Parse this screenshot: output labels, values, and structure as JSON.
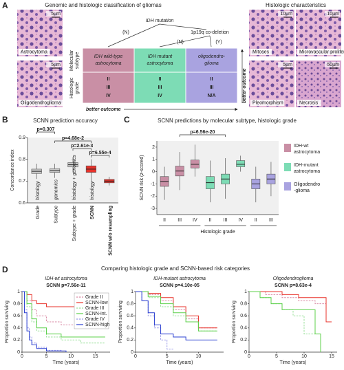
{
  "panel_a": {
    "label": "A",
    "title": "Genomic and histologic classification of gliomas",
    "images_left": [
      {
        "caption": "Astrocytoma",
        "scale": "5µm"
      },
      {
        "caption": "Oligodendroglioma",
        "scale": "5µm"
      }
    ],
    "tree": {
      "root": "IDH mutation",
      "root_no": "(N)",
      "node": "1p19q co-deletion",
      "node_no": "(N)",
      "node_yes": "(Y)"
    },
    "row_labels": [
      [
        "Molecular",
        "subtype"
      ],
      [
        "Histologic",
        "grade"
      ]
    ],
    "subtypes": [
      [
        "IDH wild-type",
        "astrocytoma"
      ],
      [
        "IDH mutant",
        "astrocytoma"
      ],
      [
        "oligodendro-",
        "glioma"
      ]
    ],
    "subtype_colors": [
      "#c98fa5",
      "#7ddcb5",
      "#a9a3e0"
    ],
    "grades": [
      [
        "II",
        "III",
        "IV"
      ],
      [
        "II",
        "III",
        "IV"
      ],
      [
        "II",
        "III",
        "N/A"
      ]
    ],
    "better_outcome_h": "better outcome",
    "better_outcome_v": "better outcome",
    "histo_title": "Histologic characteristics",
    "histo_images": [
      {
        "caption": "Mitoses",
        "scale": "10µm"
      },
      {
        "caption": "Microvascular proliferation",
        "scale": "10µm"
      },
      {
        "caption": "Pleomorphism",
        "scale": "5µm"
      },
      {
        "caption": "Necrosis",
        "scale": "50µm"
      }
    ]
  },
  "panel_d": {
    "label": "D",
    "title": "Comparing histologic grade and SCNN-based risk categories"
  },
  "chart_data": [
    {
      "type": "box",
      "label": "B",
      "title": "SCNN prediction accuracy",
      "ylabel": "Concordance index",
      "categories": [
        "Grade",
        "Subtype",
        "Subtype + grade",
        "SCNN",
        "SCNN w/o resampling"
      ],
      "box_labels": [
        "histology",
        "genomics",
        "histology + genomics",
        "histology"
      ],
      "colors": [
        "#c8c8c8",
        "#c8c8c8",
        "#c8c8c8",
        "#e8322a",
        "#e8322a"
      ],
      "median": [
        0.745,
        0.748,
        0.775,
        0.755,
        0.7
      ],
      "q1": [
        0.735,
        0.74,
        0.765,
        0.74,
        0.692
      ],
      "q3": [
        0.755,
        0.757,
        0.785,
        0.77,
        0.708
      ],
      "whisker_low": [
        0.71,
        0.715,
        0.74,
        0.7,
        0.68
      ],
      "whisker_high": [
        0.78,
        0.78,
        0.81,
        0.8,
        0.72
      ],
      "ylim": [
        0.6,
        0.9
      ],
      "yticks": [
        0.6,
        0.7,
        0.8,
        0.9
      ],
      "annotations": [
        "p=0.307",
        "p=4.68e-2",
        "p=2.61e-3",
        "p=6.55e-4"
      ]
    },
    {
      "type": "box",
      "label": "C",
      "title": "SCNN predictions by molecular subtype, histologic grade",
      "ylabel": "SCNN risk (z-scored)",
      "xlabel": "Histologic grade",
      "categories": [
        "II",
        "III",
        "IV",
        "II",
        "III",
        "IV",
        "II",
        "III"
      ],
      "colors": [
        "#c98fa5",
        "#c98fa5",
        "#c98fa5",
        "#7ddcb5",
        "#7ddcb5",
        "#7ddcb5",
        "#a9a3e0",
        "#a9a3e0"
      ],
      "median": [
        -0.8,
        0.05,
        0.6,
        -0.9,
        -0.6,
        0.6,
        -1.0,
        -0.6
      ],
      "q1": [
        -1.2,
        -0.35,
        0.3,
        -1.4,
        -1.0,
        0.4,
        -1.4,
        -1.0
      ],
      "q3": [
        -0.4,
        0.45,
        0.95,
        -0.4,
        -0.2,
        0.9,
        -0.6,
        -0.2
      ],
      "whisker_low": [
        -2.3,
        -1.5,
        -0.4,
        -2.5,
        -2.2,
        0.0,
        -2.5,
        -2.0
      ],
      "whisker_high": [
        0.4,
        1.6,
        2.2,
        0.9,
        1.1,
        1.3,
        0.4,
        0.8
      ],
      "ylim": [
        -3.5,
        2.5
      ],
      "yticks": [
        -3,
        -2,
        -1,
        0,
        1,
        2
      ],
      "annotations": [
        "p=6.56e-20"
      ],
      "legend_entries": [
        {
          "name": [
            "IDH-wt",
            "astrocytoma"
          ],
          "color": "#c98fa5"
        },
        {
          "name": [
            "IDH-mutant",
            "astrocytoma"
          ],
          "color": "#7ddcb5"
        },
        {
          "name": [
            "Oligodendro",
            "-glioma"
          ],
          "color": "#a9a3e0"
        }
      ]
    },
    {
      "type": "step",
      "subtitle": "IDH-wt astrocytoma",
      "title": "SCNN p=7.56e-11",
      "xlabel": "Time (years)",
      "ylabel": "Proportion surviving",
      "xlim": [
        0,
        18
      ],
      "xticks": [
        0,
        5,
        10,
        15
      ],
      "ylim": [
        0,
        1
      ],
      "yticks": [
        0,
        0.2,
        0.4,
        0.6,
        0.8,
        1
      ],
      "legend": "upper right",
      "series": [
        {
          "name": "Grade II",
          "color": "#d98aa5",
          "dashed": true,
          "x": [
            0,
            1,
            2,
            3,
            5,
            8,
            12,
            17
          ],
          "values": [
            1,
            0.85,
            0.7,
            0.6,
            0.5,
            0.45,
            0.45,
            0.45
          ]
        },
        {
          "name": "SCNN-low",
          "color": "#e8322a",
          "dashed": false,
          "x": [
            0,
            1,
            2,
            3,
            5,
            8,
            12,
            17
          ],
          "values": [
            1,
            0.95,
            0.85,
            0.8,
            0.75,
            0.75,
            0.75,
            0.75
          ]
        },
        {
          "name": "Grade III",
          "color": "#9be09b",
          "dashed": true,
          "x": [
            0,
            1,
            2,
            3,
            5,
            8,
            12,
            17
          ],
          "values": [
            1,
            0.75,
            0.5,
            0.35,
            0.25,
            0.2,
            0.15,
            0.15
          ]
        },
        {
          "name": "SCNN-int.",
          "color": "#5cd04a",
          "dashed": false,
          "x": [
            0,
            1,
            2,
            3,
            5,
            8,
            12,
            17
          ],
          "values": [
            1,
            0.8,
            0.55,
            0.4,
            0.3,
            0.25,
            0.25,
            0.25
          ]
        },
        {
          "name": "Grade IV",
          "color": "#9b9be8",
          "dashed": true,
          "x": [
            0,
            0.5,
            1,
            1.5,
            2,
            3,
            5,
            8
          ],
          "values": [
            1,
            0.7,
            0.4,
            0.25,
            0.15,
            0.08,
            0.03,
            0
          ]
        },
        {
          "name": "SCNN-high",
          "color": "#2a3fd0",
          "dashed": false,
          "x": [
            0,
            0.5,
            1,
            1.5,
            2,
            3,
            5,
            9
          ],
          "values": [
            1,
            0.65,
            0.35,
            0.2,
            0.12,
            0.06,
            0.02,
            0
          ]
        }
      ]
    },
    {
      "type": "step",
      "subtitle": "IDH-mutant astrocytoma",
      "title": "SCNN p=4.10e-05",
      "xlabel": "Time (years)",
      "ylabel": "Proportion surviving",
      "xlim": [
        0,
        14
      ],
      "xticks": [
        0,
        5,
        10
      ],
      "ylim": [
        0,
        1
      ],
      "yticks": [
        0,
        0.2,
        0.4,
        0.6,
        0.8,
        1
      ],
      "series": [
        {
          "name": "Grade II",
          "color": "#d98aa5",
          "dashed": true,
          "x": [
            0,
            2,
            4,
            6,
            8,
            10,
            13
          ],
          "values": [
            1,
            0.95,
            0.85,
            0.7,
            0.55,
            0.4,
            0.4
          ]
        },
        {
          "name": "SCNN-low",
          "color": "#e8322a",
          "dashed": false,
          "x": [
            0,
            2,
            4,
            6,
            8,
            10,
            13
          ],
          "values": [
            1,
            0.97,
            0.9,
            0.75,
            0.6,
            0.4,
            0.4
          ]
        },
        {
          "name": "Grade III",
          "color": "#9be09b",
          "dashed": true,
          "x": [
            0,
            2,
            4,
            6,
            8,
            10,
            13
          ],
          "values": [
            1,
            0.9,
            0.75,
            0.6,
            0.5,
            0.35,
            0.35
          ]
        },
        {
          "name": "SCNN-int.",
          "color": "#5cd04a",
          "dashed": false,
          "x": [
            0,
            2,
            4,
            6,
            8,
            10,
            13
          ],
          "values": [
            1,
            0.92,
            0.8,
            0.65,
            0.5,
            0.35,
            0.35
          ]
        },
        {
          "name": "Grade IV",
          "color": "#9b9be8",
          "dashed": true,
          "x": [
            0,
            1,
            2,
            3,
            4,
            5,
            6
          ],
          "values": [
            1,
            0.85,
            0.6,
            0.4,
            0.2,
            0.05,
            0.05
          ]
        },
        {
          "name": "SCNN-high",
          "color": "#2a3fd0",
          "dashed": false,
          "x": [
            0,
            1,
            2,
            3,
            4,
            6,
            8,
            13
          ],
          "values": [
            1,
            0.85,
            0.65,
            0.45,
            0.3,
            0.25,
            0.2,
            0.2
          ]
        }
      ]
    },
    {
      "type": "step",
      "subtitle": "Oligodendroglioma",
      "title": "SCNN p=8.63e-4",
      "xlabel": "Time (years)",
      "ylabel": "Proportion surviving",
      "xlim": [
        0,
        16
      ],
      "xticks": [
        0,
        5,
        10,
        15
      ],
      "ylim": [
        0,
        1
      ],
      "yticks": [
        0,
        0.2,
        0.4,
        0.6,
        0.8,
        1
      ],
      "series": [
        {
          "name": "Grade II",
          "color": "#d98aa5",
          "dashed": true,
          "x": [
            0,
            3,
            6,
            9,
            12,
            14
          ],
          "values": [
            1,
            0.95,
            0.9,
            0.85,
            0.8,
            0.8
          ]
        },
        {
          "name": "SCNN-low",
          "color": "#e8322a",
          "dashed": false,
          "x": [
            0,
            3,
            6,
            9,
            12,
            14,
            15
          ],
          "values": [
            1,
            1,
            0.95,
            0.9,
            0.9,
            0.5,
            0.5
          ]
        },
        {
          "name": "Grade III",
          "color": "#9be09b",
          "dashed": true,
          "x": [
            0,
            2,
            4,
            6,
            8,
            10,
            12
          ],
          "values": [
            1,
            0.9,
            0.8,
            0.7,
            0.6,
            0.3,
            0.3
          ]
        },
        {
          "name": "SCNN-int.",
          "color": "#5cd04a",
          "dashed": false,
          "x": [
            0,
            2,
            4,
            6,
            8,
            10,
            12,
            13
          ],
          "values": [
            1,
            0.9,
            0.8,
            0.7,
            0.7,
            0.7,
            0.3,
            0
          ]
        }
      ]
    }
  ]
}
